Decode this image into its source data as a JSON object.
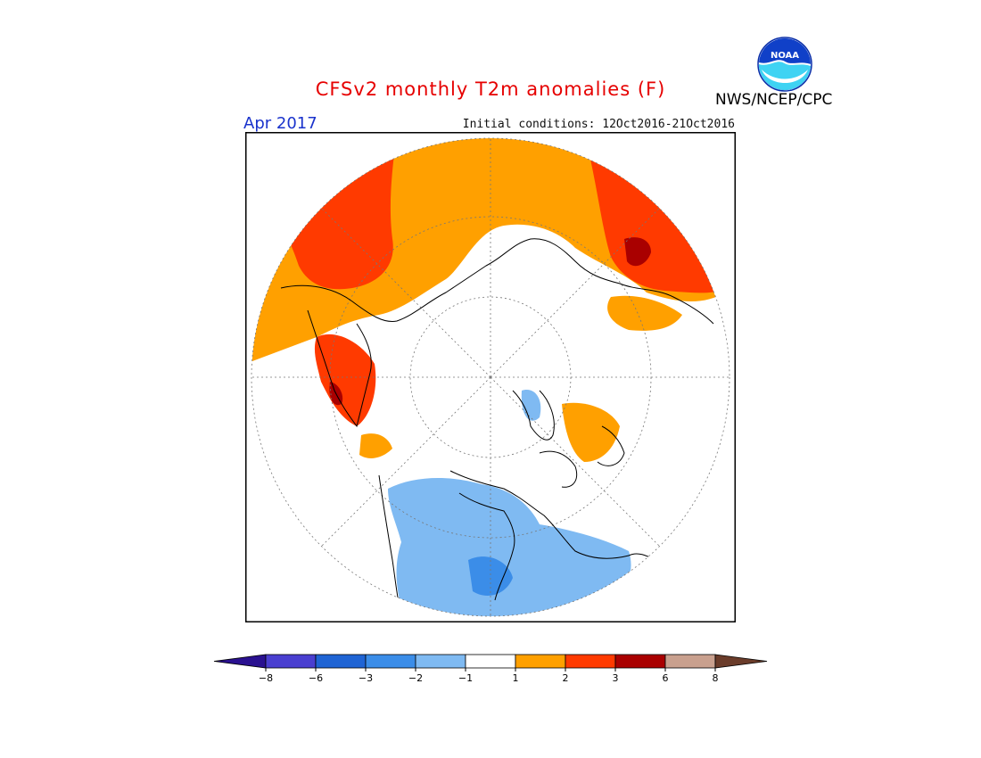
{
  "title": "CFSv2 monthly T2m anomalies (F)",
  "valid_month": "Apr 2017",
  "initial_conditions": "Initial conditions: 12Oct2016-21Oct2016",
  "organization": "NWS/NCEP/CPC",
  "logo_text": "NOAA",
  "colors": {
    "title": "#e60000",
    "month": "#1a33cc",
    "neutral": "#ffffff"
  },
  "legend": {
    "bins": [
      {
        "color": "#2a1190"
      },
      {
        "color": "#4a3fd0"
      },
      {
        "color": "#1f64d4"
      },
      {
        "color": "#3b8de8"
      },
      {
        "color": "#7fbaf2"
      },
      {
        "color": "#ffffff"
      },
      {
        "color": "#ffa000"
      },
      {
        "color": "#ff3a00"
      },
      {
        "color": "#a90000"
      },
      {
        "color": "#c9a08e"
      },
      {
        "color": "#6a3c2a"
      }
    ],
    "tick_labels": [
      "−8",
      "−6",
      "−3",
      "−2",
      "−1",
      "1",
      "2",
      "3",
      "6",
      "8"
    ]
  }
}
